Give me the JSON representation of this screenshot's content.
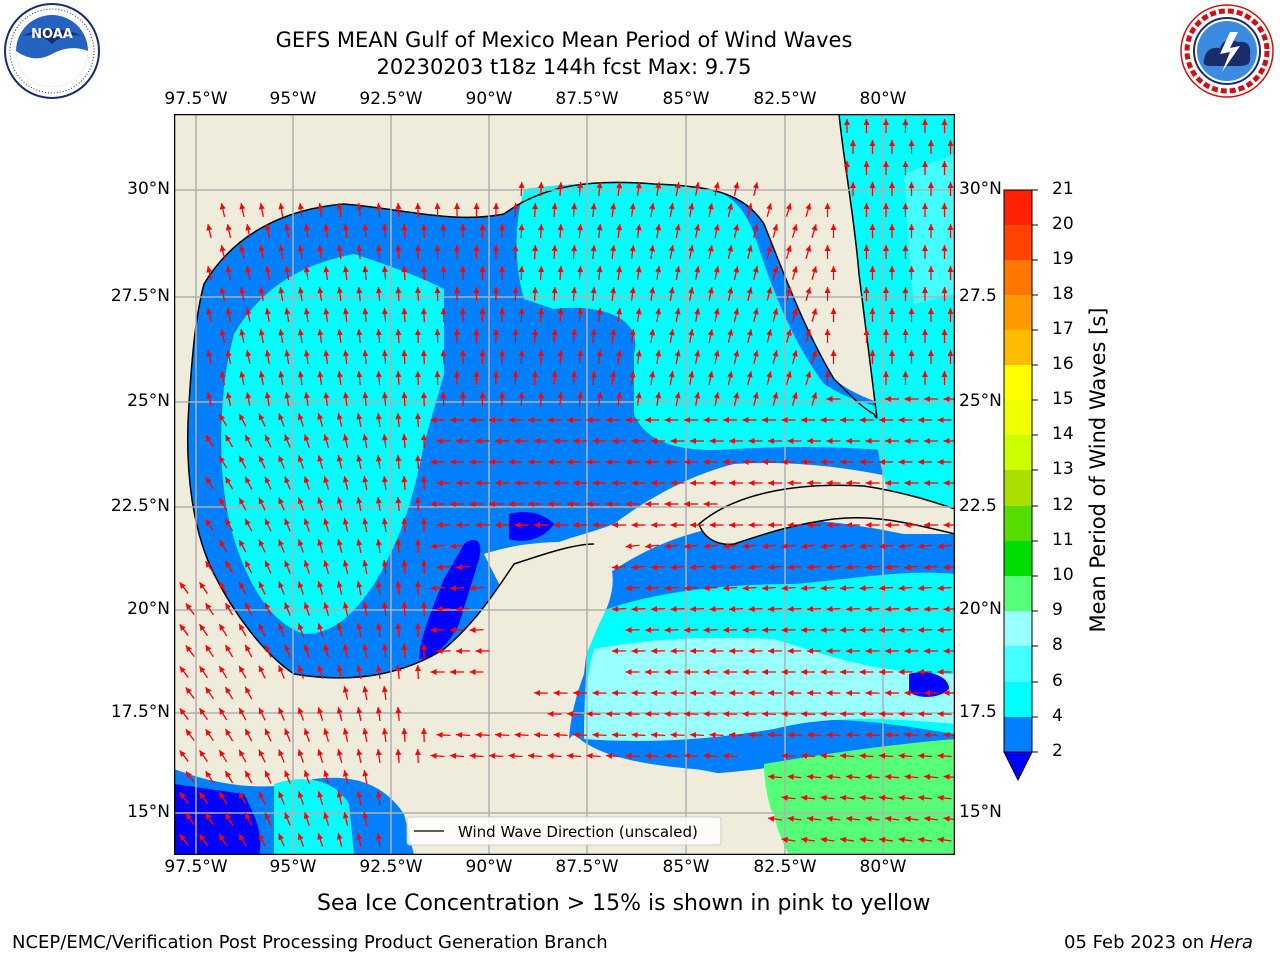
{
  "header": {
    "title_line1": "GEFS MEAN Gulf of Mexico Mean Period of Wind Waves",
    "title_line2": "20230203 t18z 144h fcst   Max: 9.75"
  },
  "logos": {
    "left": {
      "name": "NOAA",
      "ring_text": "NATIONAL OCEANIC AND ATMOSPHERIC ADMINISTRATION · U.S. DEPARTMENT OF COMMERCE"
    },
    "right": {
      "ring_text": "NATIONAL WEATHER SERVICE"
    }
  },
  "map": {
    "lon_ticks": [
      "97.5°W",
      "95°W",
      "92.5°W",
      "90°W",
      "87.5°W",
      "85°W",
      "82.5°W",
      "80°W"
    ],
    "lat_ticks_left": [
      "30°N",
      "27.5°N",
      "25°N",
      "22.5°N",
      "20°N",
      "17.5°N",
      "15°N"
    ],
    "lat_ticks_right": [
      "30°N",
      "27.5",
      "25°N",
      "22.5",
      "20°N",
      "17.5",
      "15°N"
    ],
    "legend_label": "Wind Wave Direction (unscaled)",
    "colors": {
      "land": "#efecdc",
      "ocean_dark": "#0000ff",
      "ocean_mid": "#0080ff",
      "ocean_light": "#00ffff",
      "ocean_pale": "#99ffff",
      "arrow": "#ff0000",
      "grid": "#b0b0b0",
      "green": "#55ff77"
    }
  },
  "colorbar": {
    "label": "Mean Period of Wind Waves [s]",
    "tick_labels": [
      "21",
      "20",
      "19",
      "18",
      "17",
      "16",
      "15",
      "14",
      "13",
      "12",
      "11",
      "10",
      "9",
      "8",
      "6",
      "4",
      "2"
    ],
    "bins": [
      {
        "from": 2,
        "to": 4,
        "color": "#0080ff"
      },
      {
        "from": 4,
        "to": 6,
        "color": "#00ffff"
      },
      {
        "from": 6,
        "to": 8,
        "color": "#44ffff"
      },
      {
        "from": 8,
        "to": 9,
        "color": "#99ffff"
      },
      {
        "from": 9,
        "to": 10,
        "color": "#55ff77"
      },
      {
        "from": 10,
        "to": 11,
        "color": "#00dd00"
      },
      {
        "from": 11,
        "to": 12,
        "color": "#55dd00"
      },
      {
        "from": 12,
        "to": 13,
        "color": "#aadd00"
      },
      {
        "from": 13,
        "to": 14,
        "color": "#ccff00"
      },
      {
        "from": 14,
        "to": 15,
        "color": "#eeff00"
      },
      {
        "from": 15,
        "to": 16,
        "color": "#ffff00"
      },
      {
        "from": 16,
        "to": 17,
        "color": "#ffbb00"
      },
      {
        "from": 17,
        "to": 18,
        "color": "#ff9900"
      },
      {
        "from": 18,
        "to": 19,
        "color": "#ff7700"
      },
      {
        "from": 19,
        "to": 20,
        "color": "#ff4400"
      },
      {
        "from": 20,
        "to": 21,
        "color": "#ff2200"
      }
    ],
    "extend_color": "#0000ff"
  },
  "captions": {
    "ice_note": "Sea Ice Concentration > 15% is shown in pink to yellow",
    "footer_left": "NCEP/EMC/Verification Post Processing Product Generation Branch",
    "footer_date": "05 Feb 2023 on ",
    "footer_machine": "Hera"
  },
  "chart_data": {
    "type": "heatmap",
    "title": "GEFS MEAN Gulf of Mexico Mean Period of Wind Waves",
    "subtitle": "20230203 t18z 144h fcst   Max: 9.75",
    "variable": "Mean Period of Wind Waves [s]",
    "max_value": 9.75,
    "xlim": [
      -98,
      -78
    ],
    "ylim": [
      14,
      32
    ],
    "levels": [
      2,
      4,
      6,
      8,
      9,
      10,
      11,
      12,
      13,
      14,
      15,
      16,
      17,
      18,
      19,
      20,
      21
    ],
    "vector_field": "Wind Wave Direction (unscaled)"
  }
}
